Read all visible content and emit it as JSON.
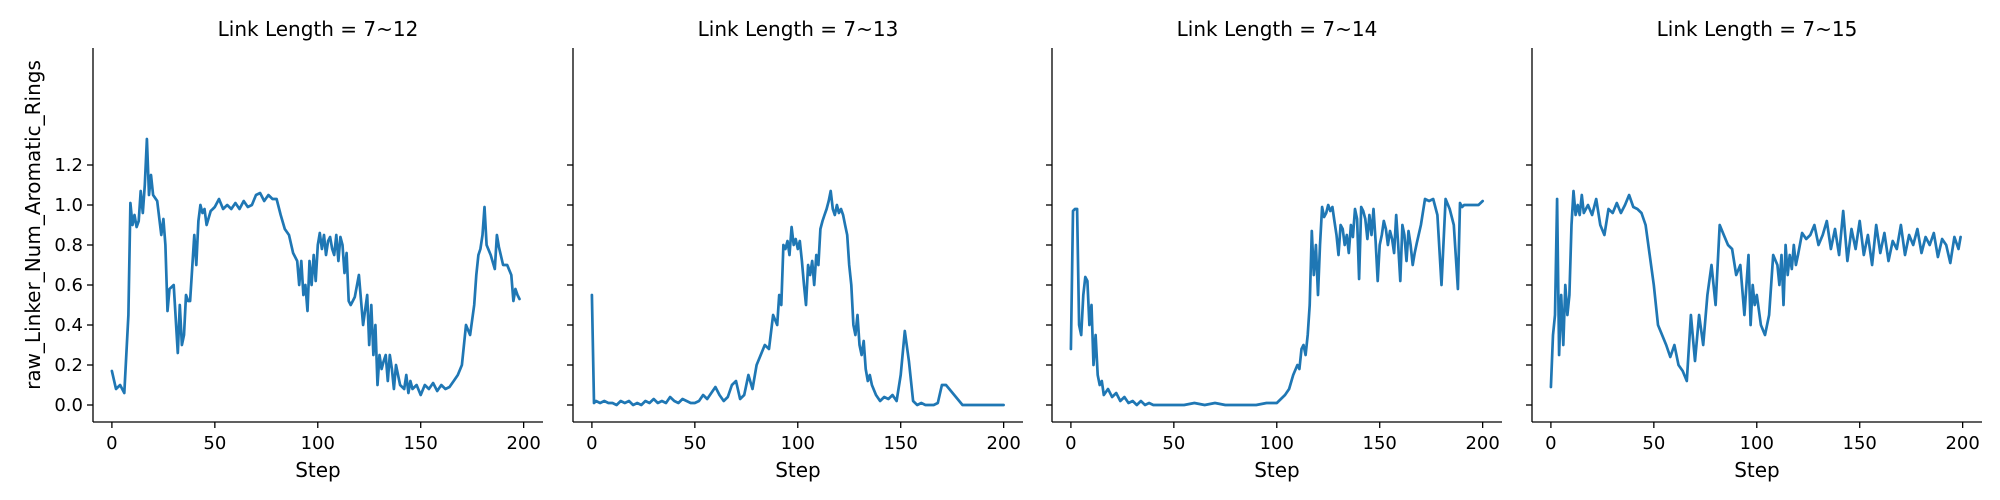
{
  "colors": {
    "series": "#1f77b4"
  },
  "chart_data": [
    {
      "type": "line",
      "title": "Link Length = 7~12",
      "xlabel": "Step",
      "ylabel": "raw_Linker_Num_Aromatic_Rings",
      "xlim": [
        0,
        200
      ],
      "ylim": [
        0,
        1.3
      ],
      "xticks": [
        "0",
        "50",
        "100",
        "150",
        "200"
      ],
      "yticks": [
        "0.0",
        "0.2",
        "0.4",
        "0.6",
        "0.8",
        "1.0",
        "1.2"
      ],
      "grid": false,
      "x": [
        0,
        2,
        4,
        6,
        8,
        9,
        10,
        11,
        12,
        13,
        14,
        15,
        16,
        17,
        18,
        19,
        20,
        22,
        24,
        25,
        26,
        27,
        28,
        30,
        32,
        33,
        34,
        35,
        36,
        37,
        38,
        40,
        41,
        42,
        43,
        44,
        45,
        46,
        48,
        49,
        50,
        52,
        54,
        56,
        58,
        60,
        62,
        64,
        66,
        68,
        70,
        72,
        74,
        76,
        78,
        80,
        82,
        84,
        86,
        88,
        90,
        91,
        92,
        93,
        94,
        95,
        96,
        97,
        98,
        99,
        100,
        101,
        102,
        103,
        104,
        105,
        106,
        107,
        108,
        109,
        110,
        111,
        112,
        113,
        114,
        115,
        116,
        117,
        118,
        120,
        122,
        124,
        125,
        126,
        127,
        128,
        129,
        130,
        131,
        132,
        133,
        134,
        135,
        136,
        137,
        138,
        140,
        142,
        143,
        144,
        145,
        146,
        148,
        150,
        152,
        154,
        156,
        158,
        160,
        162,
        164,
        166,
        168,
        170,
        172,
        174,
        176,
        177,
        178,
        179,
        180,
        181,
        182,
        184,
        186,
        187,
        188,
        190,
        192,
        194,
        195,
        196,
        197,
        198
      ],
      "y": [
        0.17,
        0.08,
        0.1,
        0.06,
        0.45,
        1.01,
        0.9,
        0.95,
        0.89,
        0.92,
        1.07,
        0.96,
        1.1,
        1.33,
        1.05,
        1.15,
        1.05,
        1.02,
        0.85,
        0.93,
        0.8,
        0.47,
        0.58,
        0.6,
        0.26,
        0.5,
        0.3,
        0.35,
        0.55,
        0.52,
        0.52,
        0.85,
        0.7,
        0.92,
        1.0,
        0.96,
        0.98,
        0.9,
        0.97,
        0.98,
        0.99,
        1.03,
        0.98,
        1.0,
        0.98,
        1.01,
        0.98,
        1.02,
        0.99,
        1.0,
        1.05,
        1.06,
        1.02,
        1.05,
        1.03,
        1.03,
        0.95,
        0.88,
        0.85,
        0.76,
        0.72,
        0.6,
        0.72,
        0.55,
        0.6,
        0.47,
        0.72,
        0.6,
        0.75,
        0.62,
        0.8,
        0.86,
        0.78,
        0.85,
        0.75,
        0.82,
        0.84,
        0.78,
        0.75,
        0.85,
        0.72,
        0.84,
        0.8,
        0.66,
        0.76,
        0.52,
        0.5,
        0.52,
        0.54,
        0.65,
        0.4,
        0.55,
        0.3,
        0.5,
        0.25,
        0.4,
        0.1,
        0.25,
        0.18,
        0.22,
        0.25,
        0.12,
        0.25,
        0.18,
        0.08,
        0.2,
        0.1,
        0.08,
        0.15,
        0.06,
        0.12,
        0.08,
        0.1,
        0.05,
        0.1,
        0.08,
        0.11,
        0.07,
        0.1,
        0.08,
        0.09,
        0.12,
        0.15,
        0.2,
        0.4,
        0.35,
        0.5,
        0.65,
        0.75,
        0.78,
        0.85,
        0.99,
        0.8,
        0.75,
        0.68,
        0.85,
        0.79,
        0.7,
        0.7,
        0.65,
        0.52,
        0.58,
        0.55,
        0.53
      ]
    },
    {
      "type": "line",
      "title": "Link Length = 7~13",
      "xlabel": "Step",
      "ylabel": "",
      "xlim": [
        0,
        200
      ],
      "ylim": [
        0,
        1.3
      ],
      "xticks": [
        "0",
        "50",
        "100",
        "150",
        "200"
      ],
      "yticks": [],
      "grid": false,
      "x": [
        0,
        1,
        2,
        4,
        6,
        8,
        10,
        12,
        14,
        16,
        18,
        20,
        22,
        24,
        26,
        28,
        30,
        32,
        34,
        36,
        38,
        40,
        42,
        44,
        46,
        48,
        50,
        52,
        54,
        56,
        58,
        60,
        62,
        64,
        66,
        68,
        70,
        72,
        74,
        76,
        78,
        80,
        82,
        84,
        86,
        88,
        90,
        91,
        92,
        93,
        94,
        95,
        96,
        97,
        98,
        99,
        100,
        101,
        102,
        103,
        104,
        105,
        106,
        107,
        108,
        109,
        110,
        111,
        112,
        113,
        114,
        115,
        116,
        117,
        118,
        119,
        120,
        121,
        122,
        123,
        124,
        125,
        126,
        127,
        128,
        129,
        130,
        131,
        132,
        133,
        134,
        135,
        136,
        138,
        140,
        142,
        144,
        146,
        148,
        150,
        152,
        154,
        156,
        158,
        160,
        162,
        164,
        166,
        168,
        170,
        172,
        180,
        190,
        200
      ],
      "y": [
        0.55,
        0.01,
        0.02,
        0.01,
        0.02,
        0.01,
        0.01,
        0.0,
        0.02,
        0.01,
        0.02,
        0.0,
        0.01,
        0.0,
        0.02,
        0.01,
        0.03,
        0.01,
        0.02,
        0.01,
        0.04,
        0.02,
        0.01,
        0.03,
        0.02,
        0.01,
        0.01,
        0.02,
        0.05,
        0.03,
        0.06,
        0.09,
        0.05,
        0.02,
        0.04,
        0.1,
        0.12,
        0.03,
        0.05,
        0.15,
        0.08,
        0.2,
        0.25,
        0.3,
        0.28,
        0.45,
        0.4,
        0.55,
        0.5,
        0.8,
        0.78,
        0.82,
        0.75,
        0.89,
        0.8,
        0.83,
        0.78,
        0.82,
        0.72,
        0.6,
        0.5,
        0.7,
        0.65,
        0.72,
        0.6,
        0.75,
        0.7,
        0.88,
        0.92,
        0.95,
        0.98,
        1.02,
        1.07,
        0.98,
        0.95,
        1.0,
        0.96,
        0.98,
        0.95,
        0.9,
        0.85,
        0.7,
        0.6,
        0.4,
        0.35,
        0.45,
        0.3,
        0.25,
        0.32,
        0.18,
        0.12,
        0.15,
        0.1,
        0.05,
        0.02,
        0.04,
        0.03,
        0.05,
        0.02,
        0.15,
        0.37,
        0.22,
        0.02,
        0.0,
        0.01,
        0.0,
        0.0,
        0.0,
        0.01,
        0.1,
        0.1,
        0.0,
        0.0,
        0.0
      ]
    },
    {
      "type": "line",
      "title": "Link Length = 7~14",
      "xlabel": "Step",
      "ylabel": "",
      "xlim": [
        0,
        200
      ],
      "ylim": [
        0,
        1.3
      ],
      "xticks": [
        "0",
        "50",
        "100",
        "150",
        "200"
      ],
      "yticks": [],
      "grid": false,
      "x": [
        0,
        1,
        2,
        3,
        4,
        5,
        6,
        7,
        8,
        9,
        10,
        11,
        12,
        13,
        14,
        15,
        16,
        18,
        20,
        22,
        24,
        26,
        28,
        30,
        32,
        34,
        36,
        38,
        40,
        45,
        50,
        55,
        60,
        65,
        70,
        75,
        80,
        85,
        90,
        95,
        100,
        102,
        104,
        106,
        108,
        110,
        111,
        112,
        113,
        114,
        115,
        116,
        117,
        118,
        119,
        120,
        121,
        122,
        123,
        124,
        125,
        126,
        127,
        128,
        129,
        130,
        131,
        132,
        133,
        134,
        135,
        136,
        137,
        138,
        139,
        140,
        141,
        142,
        143,
        144,
        145,
        146,
        147,
        148,
        149,
        150,
        151,
        152,
        153,
        154,
        155,
        156,
        157,
        158,
        159,
        160,
        161,
        162,
        163,
        164,
        165,
        166,
        167,
        168,
        170,
        172,
        174,
        176,
        178,
        180,
        182,
        184,
        186,
        188,
        189,
        190,
        191,
        192,
        194,
        196,
        198,
        200
      ],
      "y": [
        0.28,
        0.97,
        0.98,
        0.98,
        0.4,
        0.35,
        0.55,
        0.64,
        0.62,
        0.4,
        0.5,
        0.2,
        0.35,
        0.15,
        0.1,
        0.12,
        0.05,
        0.08,
        0.04,
        0.06,
        0.02,
        0.04,
        0.01,
        0.02,
        0.0,
        0.02,
        0.0,
        0.01,
        0.0,
        0.0,
        0.0,
        0.0,
        0.01,
        0.0,
        0.01,
        0.0,
        0.0,
        0.0,
        0.0,
        0.01,
        0.01,
        0.03,
        0.05,
        0.08,
        0.15,
        0.2,
        0.18,
        0.28,
        0.3,
        0.25,
        0.35,
        0.5,
        0.87,
        0.65,
        0.8,
        0.55,
        0.8,
        0.99,
        0.94,
        0.96,
        1.0,
        0.97,
        0.99,
        0.92,
        0.85,
        0.75,
        0.9,
        0.88,
        0.8,
        0.85,
        0.76,
        0.9,
        0.84,
        0.98,
        0.93,
        0.63,
        0.99,
        0.97,
        0.93,
        0.83,
        0.95,
        0.85,
        0.98,
        0.82,
        0.62,
        0.8,
        0.85,
        0.92,
        0.88,
        0.8,
        0.87,
        0.83,
        0.76,
        0.95,
        0.8,
        0.62,
        0.9,
        0.85,
        0.72,
        0.87,
        0.8,
        0.7,
        0.76,
        0.81,
        0.9,
        1.03,
        1.02,
        1.03,
        0.95,
        0.6,
        1.03,
        0.98,
        0.9,
        0.58,
        1.01,
        0.99,
        1.0,
        1.0,
        1.0,
        1.0,
        1.0,
        1.02
      ]
    },
    {
      "type": "line",
      "title": "Link Length = 7~15",
      "xlabel": "Step",
      "ylabel": "",
      "xlim": [
        0,
        200
      ],
      "ylim": [
        0,
        1.3
      ],
      "xticks": [
        "0",
        "50",
        "100",
        "150",
        "200"
      ],
      "yticks": [],
      "grid": false,
      "x": [
        0,
        1,
        2,
        3,
        4,
        5,
        6,
        7,
        8,
        9,
        10,
        11,
        12,
        13,
        14,
        15,
        16,
        18,
        20,
        22,
        24,
        26,
        28,
        30,
        32,
        34,
        36,
        38,
        40,
        42,
        44,
        46,
        48,
        50,
        52,
        54,
        56,
        58,
        60,
        62,
        64,
        66,
        68,
        70,
        72,
        74,
        76,
        78,
        80,
        82,
        84,
        86,
        88,
        90,
        92,
        94,
        96,
        97,
        98,
        99,
        100,
        102,
        104,
        106,
        108,
        110,
        111,
        112,
        113,
        114,
        115,
        116,
        117,
        118,
        119,
        120,
        122,
        124,
        126,
        128,
        130,
        132,
        134,
        136,
        138,
        140,
        142,
        144,
        146,
        148,
        150,
        152,
        154,
        156,
        158,
        160,
        162,
        164,
        166,
        168,
        170,
        172,
        174,
        176,
        178,
        180,
        182,
        184,
        186,
        188,
        190,
        192,
        194,
        196,
        198,
        199
      ],
      "y": [
        0.09,
        0.35,
        0.45,
        1.03,
        0.25,
        0.55,
        0.3,
        0.6,
        0.45,
        0.55,
        0.9,
        1.07,
        0.95,
        1.0,
        0.95,
        1.05,
        0.96,
        1.0,
        0.95,
        1.03,
        0.9,
        0.85,
        0.98,
        0.96,
        1.01,
        0.96,
        1.0,
        1.05,
        0.99,
        0.98,
        0.96,
        0.9,
        0.75,
        0.6,
        0.4,
        0.35,
        0.3,
        0.24,
        0.3,
        0.2,
        0.17,
        0.12,
        0.45,
        0.22,
        0.45,
        0.3,
        0.55,
        0.7,
        0.5,
        0.9,
        0.85,
        0.8,
        0.78,
        0.65,
        0.7,
        0.45,
        0.75,
        0.4,
        0.6,
        0.5,
        0.55,
        0.4,
        0.35,
        0.45,
        0.75,
        0.7,
        0.6,
        0.75,
        0.5,
        0.8,
        0.65,
        0.75,
        0.68,
        0.8,
        0.7,
        0.75,
        0.86,
        0.83,
        0.85,
        0.9,
        0.8,
        0.85,
        0.92,
        0.78,
        0.88,
        0.75,
        0.97,
        0.72,
        0.88,
        0.78,
        0.92,
        0.75,
        0.85,
        0.7,
        0.9,
        0.76,
        0.86,
        0.72,
        0.82,
        0.78,
        0.9,
        0.75,
        0.85,
        0.8,
        0.88,
        0.76,
        0.84,
        0.8,
        0.86,
        0.74,
        0.83,
        0.8,
        0.71,
        0.84,
        0.78,
        0.84
      ]
    }
  ]
}
